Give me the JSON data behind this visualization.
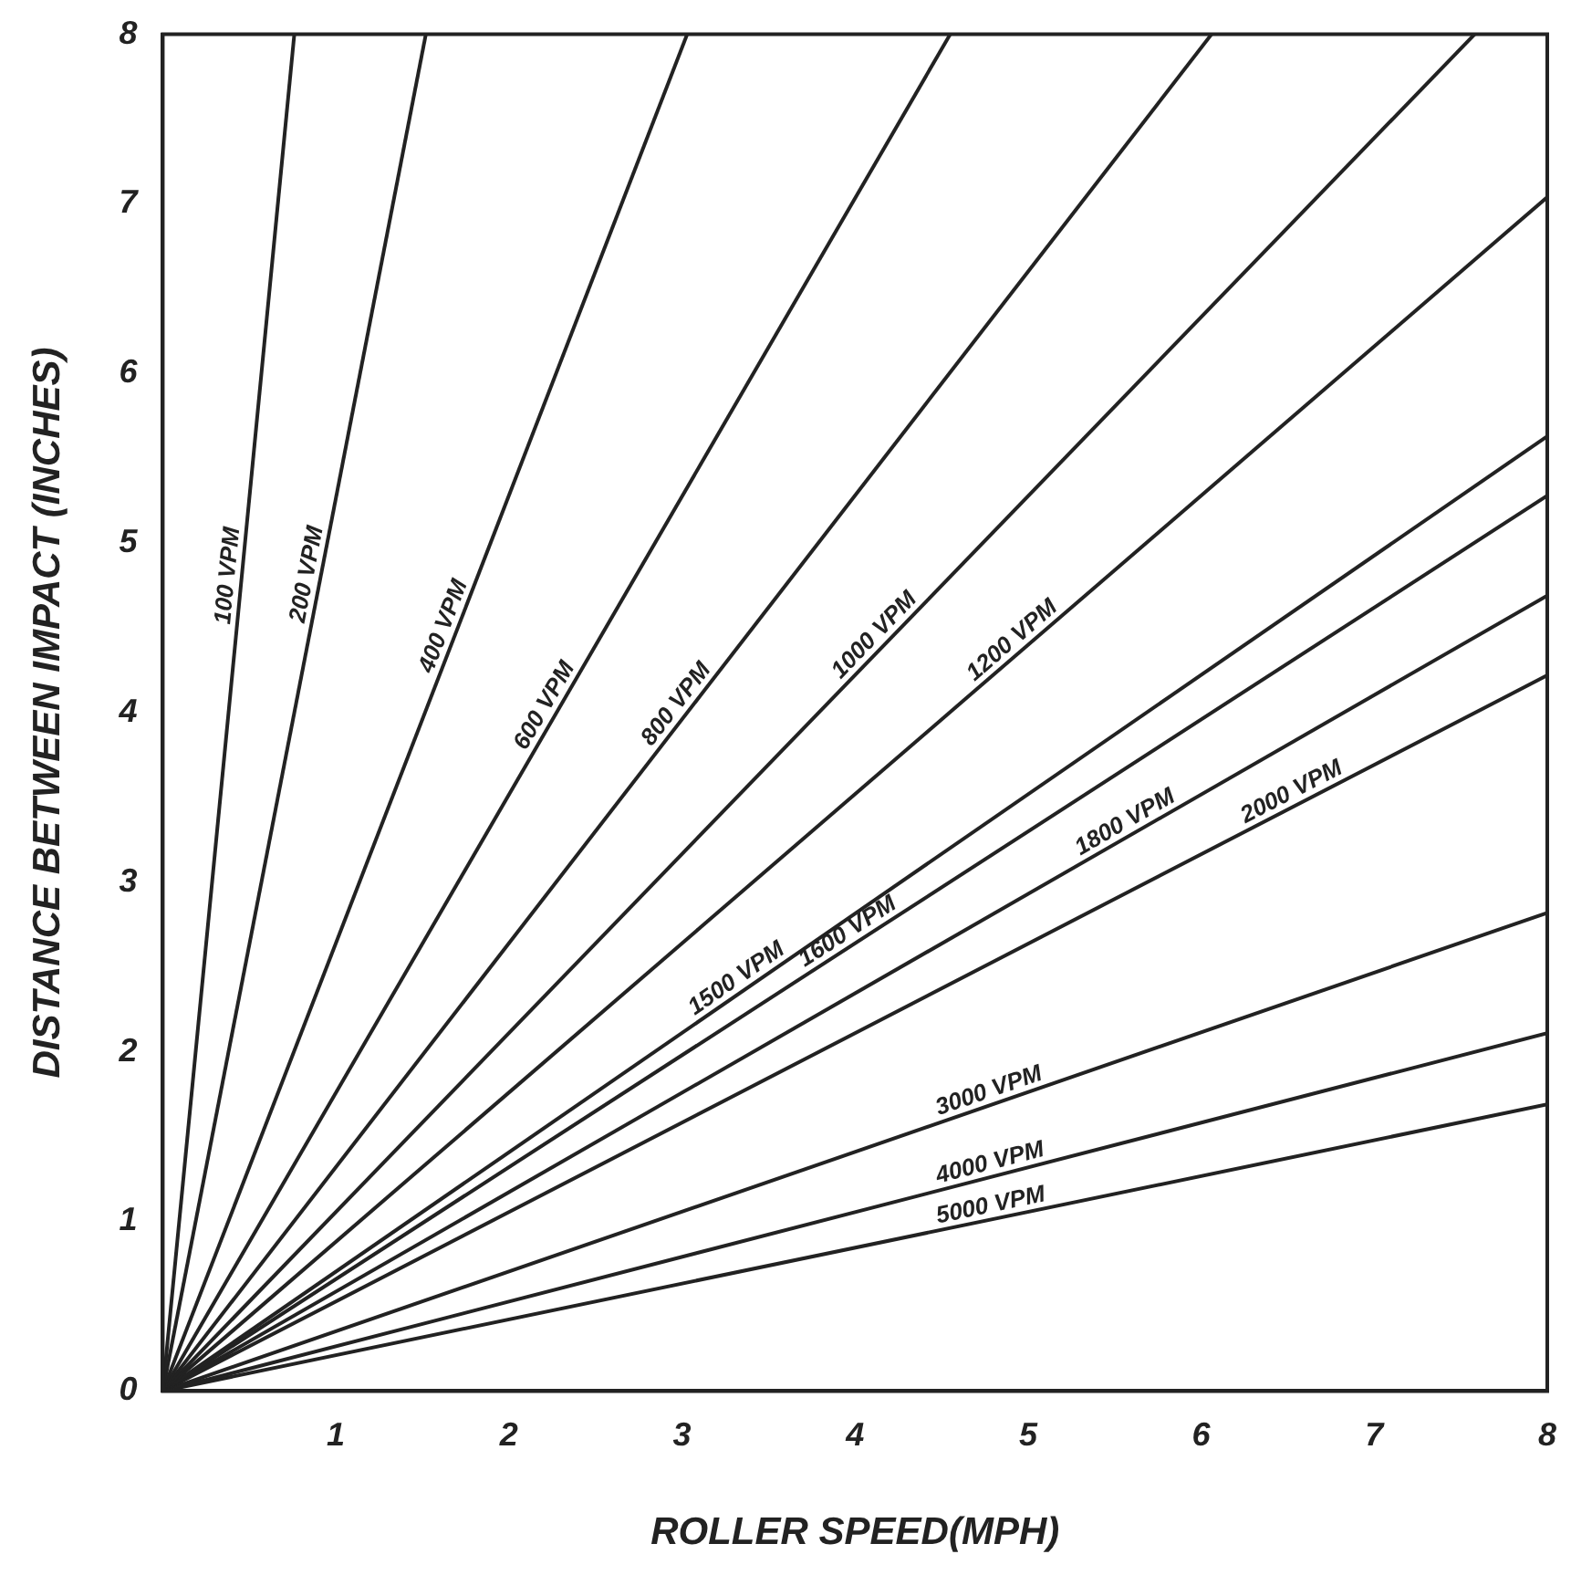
{
  "chart_data": {
    "type": "line",
    "xlabel": "ROLLER SPEED(MPH)",
    "ylabel": "DISTANCE BETWEEN IMPACT (INCHES)",
    "xlim": [
      0,
      8
    ],
    "ylim": [
      0,
      8
    ],
    "xticks": [
      {
        "value": 0,
        "label": null
      },
      1,
      2,
      3,
      4,
      5,
      6,
      7,
      8
    ],
    "yticks": [
      0,
      1,
      2,
      3,
      4,
      5,
      6,
      7,
      8
    ],
    "grid": false,
    "legend": false,
    "marker": "none",
    "line_style": "solid",
    "series": [
      {
        "name": "100 VPM",
        "color": "#222222",
        "x": [
          0,
          0.76
        ],
        "values": [
          0,
          8
        ]
      },
      {
        "name": "200 VPM",
        "color": "#222222",
        "x": [
          0,
          1.52
        ],
        "values": [
          0,
          8
        ]
      },
      {
        "name": "400 VPM",
        "color": "#222222",
        "x": [
          0,
          3.03
        ],
        "values": [
          0,
          8
        ]
      },
      {
        "name": "600 VPM",
        "color": "#222222",
        "x": [
          0,
          4.55
        ],
        "values": [
          0,
          8
        ]
      },
      {
        "name": "800 VPM",
        "color": "#222222",
        "x": [
          0,
          6.06
        ],
        "values": [
          0,
          8
        ]
      },
      {
        "name": "1000 VPM",
        "color": "#222222",
        "x": [
          0,
          7.58
        ],
        "values": [
          0,
          8
        ]
      },
      {
        "name": "1200 VPM",
        "color": "#222222",
        "x": [
          0,
          8
        ],
        "values": [
          0,
          7.04
        ]
      },
      {
        "name": "1500 VPM",
        "color": "#222222",
        "x": [
          0,
          8
        ],
        "values": [
          0,
          5.63
        ]
      },
      {
        "name": "1600 VPM",
        "color": "#222222",
        "x": [
          0,
          8
        ],
        "values": [
          0,
          5.28
        ]
      },
      {
        "name": "1800 VPM",
        "color": "#222222",
        "x": [
          0,
          8
        ],
        "values": [
          0,
          4.69
        ]
      },
      {
        "name": "2000 VPM",
        "color": "#222222",
        "x": [
          0,
          8
        ],
        "values": [
          0,
          4.22
        ]
      },
      {
        "name": "3000 VPM",
        "color": "#222222",
        "x": [
          0,
          8
        ],
        "values": [
          0,
          2.82
        ]
      },
      {
        "name": "4000 VPM",
        "color": "#222222",
        "x": [
          0,
          8
        ],
        "values": [
          0,
          2.11
        ]
      },
      {
        "name": "5000 VPM",
        "color": "#222222",
        "x": [
          0,
          8
        ],
        "values": [
          0,
          1.69
        ]
      }
    ]
  }
}
